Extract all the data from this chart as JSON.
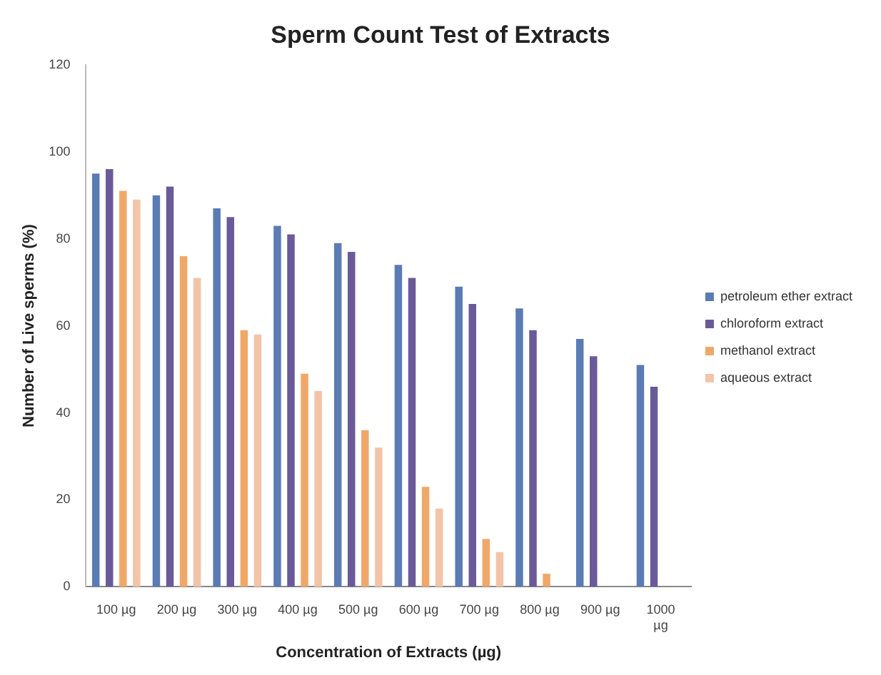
{
  "chart_data": {
    "type": "bar",
    "title": "Sperm Count Test of Extracts",
    "xlabel": "Concentration of Extracts (µg)",
    "ylabel": "Number of Live sperms (%)",
    "categories": [
      "100 µg",
      "200 µg",
      "300 µg",
      "400 µg",
      "500 µg",
      "600 µg",
      "700 µg",
      "800 µg",
      "900 µg",
      "1000 µg"
    ],
    "series": [
      {
        "name": "petroleum ether extract",
        "color": "#5b7bb5",
        "values": [
          95,
          90,
          87,
          83,
          79,
          74,
          69,
          64,
          57,
          51
        ]
      },
      {
        "name": "chloroform extract",
        "color": "#6a5a9a",
        "values": [
          96,
          92,
          85,
          81,
          77,
          71,
          65,
          59,
          53,
          46
        ]
      },
      {
        "name": "methanol extract",
        "color": "#f0a868",
        "values": [
          91,
          76,
          59,
          49,
          36,
          23,
          11,
          3,
          0,
          0
        ]
      },
      {
        "name": "aqueous extract",
        "color": "#f3c4a8",
        "values": [
          89,
          71,
          58,
          45,
          32,
          18,
          8,
          0,
          0,
          0
        ]
      }
    ],
    "ylim": [
      0,
      120
    ],
    "yticks": [
      0,
      20,
      40,
      60,
      80,
      100,
      120
    ],
    "grid": false,
    "legend": "right"
  }
}
